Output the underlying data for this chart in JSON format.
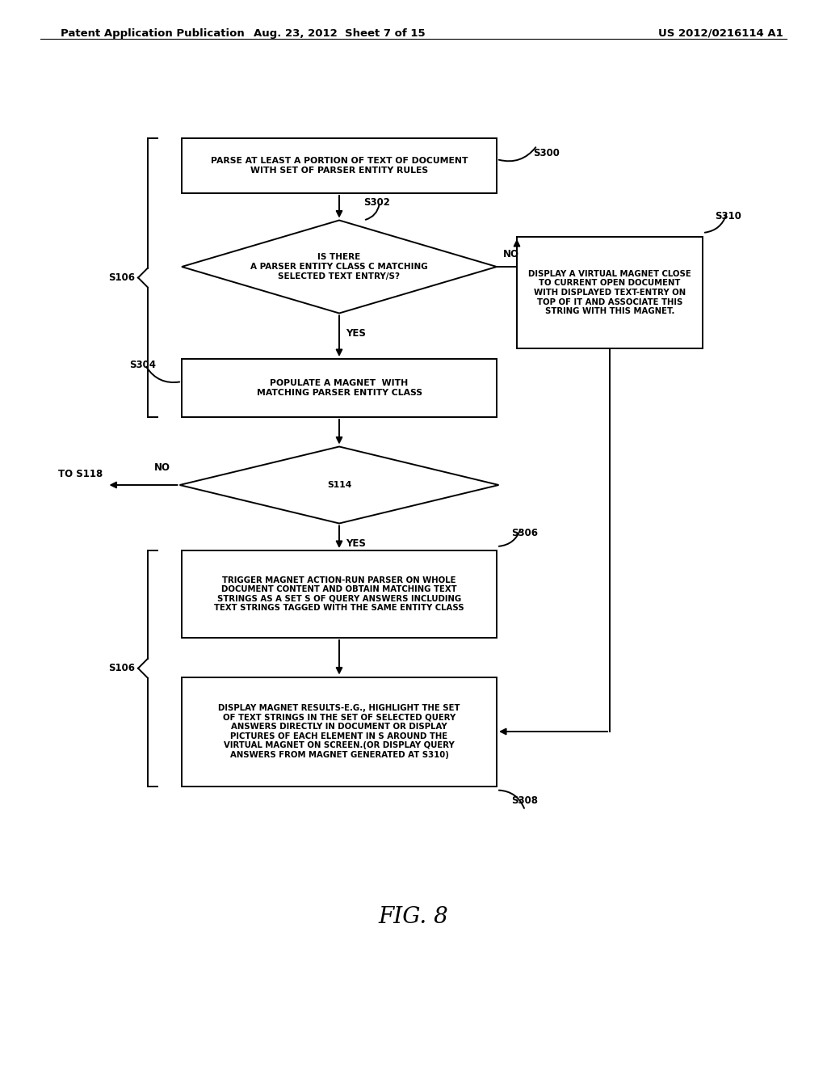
{
  "bg_color": "#ffffff",
  "header_left": "Patent Application Publication",
  "header_center": "Aug. 23, 2012  Sheet 7 of 15",
  "header_right": "US 2012/0216114 A1",
  "figure_label": "FIG. 8",
  "line_color": "#000000",
  "text_color": "#000000",
  "font_size_box": 7.8,
  "font_size_label": 8.5,
  "font_size_header": 9.5,
  "font_size_fig": 20
}
